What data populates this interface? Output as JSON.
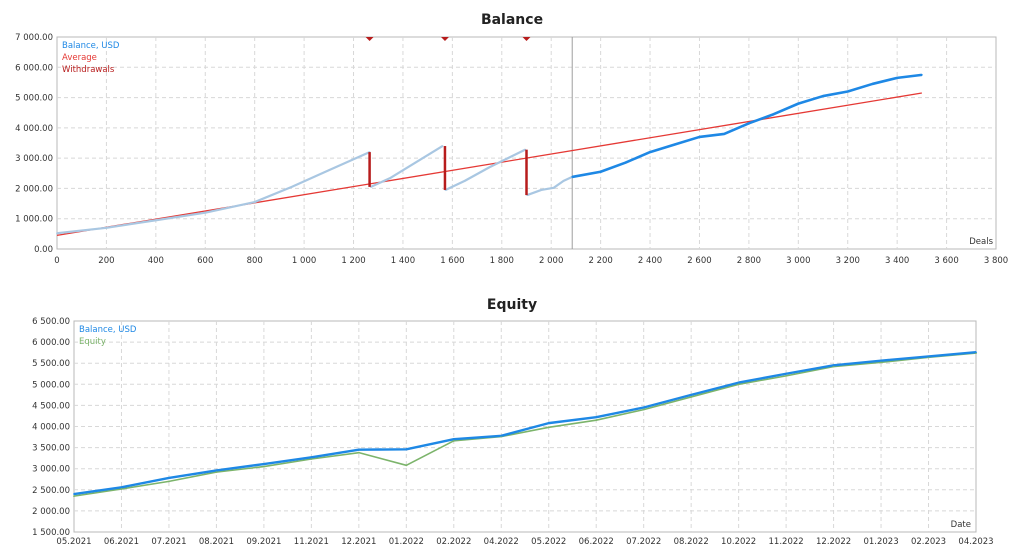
{
  "chart_data": [
    {
      "type": "line",
      "title": "Balance",
      "xlabel": "Deals",
      "ylabel": "",
      "xlim": [
        0,
        3800
      ],
      "ylim": [
        0,
        7000
      ],
      "x_ticks": [
        "0",
        "200",
        "400",
        "600",
        "800",
        "1 000",
        "1 200",
        "1 400",
        "1 600",
        "1 800",
        "2 000",
        "2 200",
        "2 400",
        "2 600",
        "2 800",
        "3 000",
        "3 200",
        "3 400",
        "3 600",
        "3 800"
      ],
      "y_ticks": [
        "0.00",
        "1 000.00",
        "2 000.00",
        "3 000.00",
        "4 000.00",
        "5 000.00",
        "6 000.00",
        "7 000.00"
      ],
      "grid": true,
      "legend_position": "top-left",
      "divider_deal": 2085,
      "series": [
        {
          "name": "Balance, USD",
          "color": "#1e88e5",
          "segments": [
            {
              "color": "#a9c7e2",
              "x": [
                0,
                200,
                400,
                600,
                800,
                950,
                1100,
                1265
              ],
              "y": [
                520,
                700,
                950,
                1200,
                1550,
                2050,
                2600,
                3200
              ]
            },
            {
              "color": "#a9c7e2",
              "x": [
                1270,
                1350,
                1450,
                1560
              ],
              "y": [
                2050,
                2350,
                2850,
                3400
              ]
            },
            {
              "color": "#a9c7e2",
              "x": [
                1572,
                1650,
                1750,
                1895
              ],
              "y": [
                1950,
                2250,
                2700,
                3280
              ]
            },
            {
              "color": "#a9c7e2",
              "x": [
                1903,
                1960,
                2010,
                2050,
                2085
              ],
              "y": [
                1780,
                1950,
                2020,
                2250,
                2380
              ]
            },
            {
              "color": "#1e88e5",
              "x": [
                2085,
                2200,
                2300,
                2400,
                2500,
                2600,
                2700,
                2800,
                2900,
                3000,
                3100,
                3200,
                3300,
                3400,
                3500
              ],
              "y": [
                2380,
                2550,
                2850,
                3200,
                3450,
                3700,
                3800,
                4150,
                4450,
                4800,
                5050,
                5200,
                5450,
                5650,
                5750
              ]
            }
          ]
        },
        {
          "name": "Average",
          "color": "#e53935",
          "x": [
            0,
            3500
          ],
          "y": [
            450,
            5150
          ]
        },
        {
          "name": "Withdrawals",
          "color": "#b71c1c",
          "x": [
            1265,
            1570,
            1900
          ],
          "y_from": [
            3200,
            3400,
            3280
          ],
          "y_to": [
            2050,
            1950,
            1780
          ]
        }
      ]
    },
    {
      "type": "line",
      "title": "Equity",
      "xlabel": "Date",
      "ylabel": "",
      "ylim": [
        1500,
        6500
      ],
      "x_ticks": [
        "05.2021",
        "06.2021",
        "07.2021",
        "08.2021",
        "09.2021",
        "11.2021",
        "12.2021",
        "01.2022",
        "02.2022",
        "04.2022",
        "05.2022",
        "06.2022",
        "07.2022",
        "08.2022",
        "10.2022",
        "11.2022",
        "12.2022",
        "01.2023",
        "02.2023",
        "04.2023"
      ],
      "y_ticks": [
        "1 500.00",
        "2 000.00",
        "2 500.00",
        "3 000.00",
        "3 500.00",
        "4 000.00",
        "4 500.00",
        "5 000.00",
        "5 500.00",
        "6 000.00",
        "6 500.00"
      ],
      "grid": true,
      "legend_position": "top-left",
      "series": [
        {
          "name": "Balance, USD",
          "color": "#1e88e5",
          "x": [
            "05.2021",
            "06.2021",
            "07.2021",
            "08.2021",
            "09.2021",
            "11.2021",
            "12.2021",
            "01.2022",
            "02.2022",
            "04.2022",
            "05.2022",
            "06.2022",
            "07.2022",
            "08.2022",
            "10.2022",
            "11.2022",
            "12.2022",
            "01.2023",
            "02.2023",
            "04.2023"
          ],
          "y": [
            2400,
            2560,
            2780,
            2960,
            3110,
            3270,
            3450,
            3460,
            3700,
            3780,
            4080,
            4220,
            4450,
            4750,
            5040,
            5250,
            5450,
            5560,
            5660,
            5760
          ]
        },
        {
          "name": "Equity",
          "color": "#7cb46b",
          "x": [
            "05.2021",
            "06.2021",
            "07.2021",
            "08.2021",
            "09.2021",
            "11.2021",
            "12.2021",
            "01.2022",
            "02.2022",
            "04.2022",
            "05.2022",
            "06.2022",
            "07.2022",
            "08.2022",
            "10.2022",
            "11.2022",
            "12.2022",
            "01.2023",
            "02.2023",
            "04.2023"
          ],
          "y": [
            2350,
            2520,
            2700,
            2920,
            3050,
            3230,
            3380,
            3080,
            3660,
            3760,
            3980,
            4150,
            4400,
            4700,
            5000,
            5200,
            5420,
            5520,
            5640,
            5740
          ]
        }
      ]
    }
  ]
}
